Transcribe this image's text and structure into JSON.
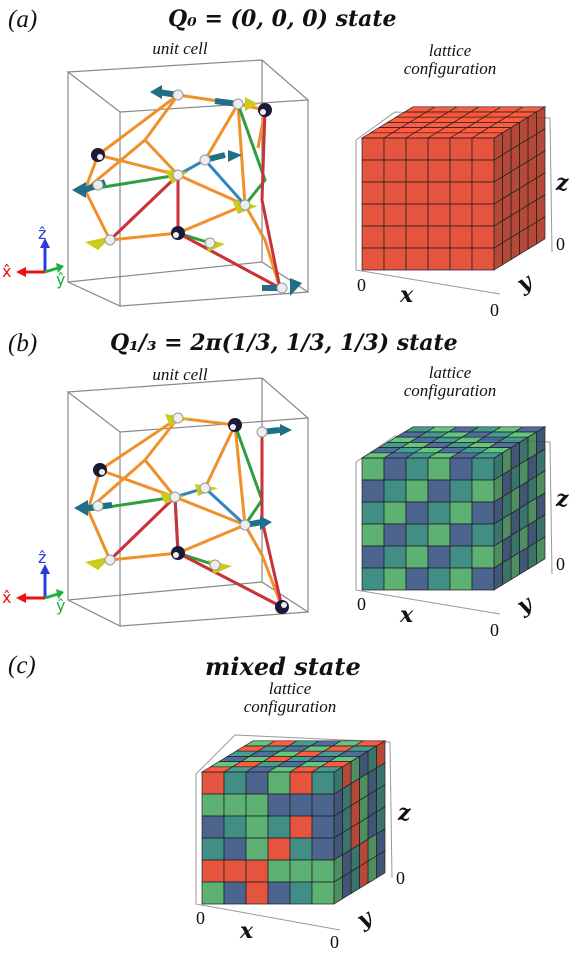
{
  "panel_a": {
    "label": "(a)",
    "title": "Q₀ = (0, 0, 0) state",
    "unit_cell_label": "unit cell",
    "lattice_label_1": "lattice",
    "lattice_label_2": "configuration",
    "axis_x": "x",
    "axis_y": "y",
    "axis_z": "z",
    "tick_x0": "0",
    "tick_y0": "0",
    "tick_z0": "0",
    "triad": {
      "x": "x̂",
      "y": "ŷ",
      "z": "ẑ"
    },
    "lattice_colors": [
      "#e0361c"
    ]
  },
  "panel_b": {
    "label": "(b)",
    "title": "Q₁/₃ = 2π(1/3, 1/3, 1/3) state",
    "unit_cell_label": "unit cell",
    "lattice_label_1": "lattice",
    "lattice_label_2": "configuration",
    "axis_x": "x",
    "axis_y": "y",
    "axis_z": "z",
    "tick_x0": "0",
    "tick_y0": "0",
    "tick_z0": "0",
    "triad": {
      "x": "x̂",
      "y": "ŷ",
      "z": "ẑ"
    },
    "lattice_colors": [
      "#3fa35a",
      "#2b4a7a",
      "#1f7a6e"
    ]
  },
  "panel_c": {
    "label": "(c)",
    "title": "mixed state",
    "lattice_label_1": "lattice",
    "lattice_label_2": "configuration",
    "axis_x": "x",
    "axis_y": "y",
    "axis_z": "z",
    "tick_x0": "0",
    "tick_y0": "0",
    "tick_z0": "0",
    "lattice_colors": [
      "#e0361c",
      "#3fa35a",
      "#2b4a7a",
      "#1f7a6e"
    ]
  },
  "colors": {
    "bond_orange": "#f0902a",
    "bond_green": "#2e9e3e",
    "bond_blue": "#2f86c4",
    "bond_red": "#c8323c",
    "spin_teal": "#1f6f86",
    "spin_yellow": "#c9cc1a",
    "spin_dark": "#1c1838"
  }
}
